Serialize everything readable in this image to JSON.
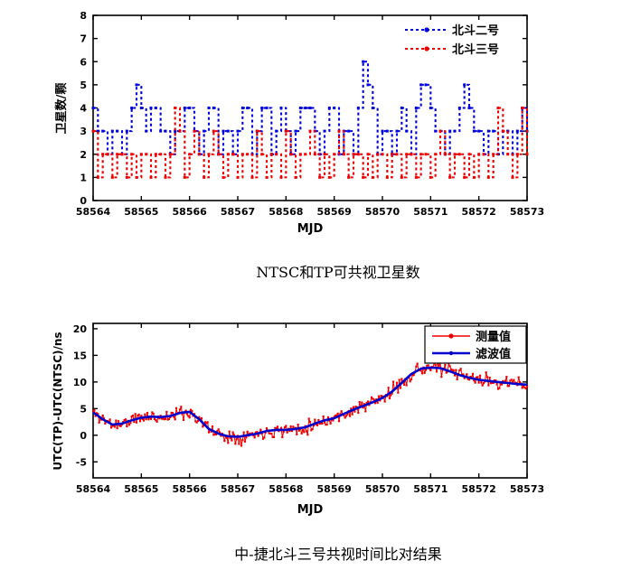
{
  "page": {
    "background": "#ffffff"
  },
  "captions": {
    "chart1": "NTSC和TP可共视卫星数",
    "chart2": "中-捷北斗三号共视时间比对结果"
  },
  "chart_data": [
    {
      "id": "visible-satellite-count",
      "type": "line",
      "style": "stairs-dashed",
      "xlabel": "MJD",
      "ylabel": "卫星数/颗",
      "xlim": [
        58564,
        58573
      ],
      "ylim": [
        0,
        8
      ],
      "xticks": [
        58564,
        58565,
        58566,
        58567,
        58568,
        58569,
        58570,
        58571,
        58572,
        58573
      ],
      "yticks": [
        0,
        1,
        2,
        3,
        4,
        5,
        6,
        7,
        8
      ],
      "grid": false,
      "legend_position": "top-right",
      "legend_box": false,
      "x_start": 58564,
      "x_step": 0.1,
      "series": [
        {
          "name": "北斗二号",
          "color": "#0000dd",
          "values": [
            4,
            3,
            3,
            2,
            3,
            3,
            2,
            3,
            4,
            5,
            4,
            3,
            4,
            4,
            3,
            3,
            2,
            3,
            3,
            4,
            4,
            3,
            2,
            3,
            4,
            4,
            2,
            3,
            3,
            2,
            3,
            4,
            4,
            2,
            3,
            4,
            4,
            2,
            3,
            4,
            3,
            2,
            3,
            4,
            4,
            4,
            3,
            2,
            3,
            4,
            4,
            2,
            3,
            3,
            2,
            4,
            6,
            5,
            4,
            2,
            3,
            3,
            2,
            3,
            4,
            3,
            2,
            4,
            5,
            5,
            4,
            3,
            3,
            2,
            3,
            3,
            4,
            5,
            4,
            3,
            3,
            2,
            3,
            3,
            2,
            3,
            3,
            2,
            3,
            4,
            3
          ]
        },
        {
          "name": "北斗三号",
          "color": "#ee0000",
          "values": [
            3,
            1,
            2,
            2,
            1,
            2,
            2,
            1,
            2,
            1,
            2,
            2,
            1,
            2,
            2,
            1,
            2,
            4,
            3,
            1,
            2,
            3,
            2,
            1,
            2,
            3,
            2,
            1,
            2,
            2,
            1,
            2,
            2,
            1,
            3,
            2,
            1,
            2,
            2,
            1,
            3,
            2,
            1,
            2,
            2,
            3,
            2,
            1,
            2,
            1,
            2,
            3,
            2,
            1,
            2,
            2,
            1,
            2,
            1,
            2,
            2,
            1,
            2,
            2,
            1,
            2,
            2,
            1,
            2,
            2,
            1,
            2,
            3,
            2,
            1,
            2,
            2,
            1,
            2,
            1,
            2,
            2,
            1,
            2,
            4,
            3,
            2,
            1,
            2,
            4,
            2
          ]
        }
      ]
    },
    {
      "id": "utc-time-comparison",
      "type": "line",
      "style": "noisy-plus-filtered",
      "xlabel": "MJD",
      "ylabel": "UTC(TP)-UTC(NTSC)/ns",
      "xlim": [
        58564,
        58573
      ],
      "ylim": [
        -8,
        21
      ],
      "xticks": [
        58564,
        58565,
        58566,
        58567,
        58568,
        58569,
        58570,
        58571,
        58572,
        58573
      ],
      "yticks": [
        -5,
        0,
        5,
        10,
        15,
        20
      ],
      "grid": false,
      "legend_position": "top-right",
      "legend_box": true,
      "series": [
        {
          "name": "测量值",
          "color": "#ee0000",
          "role": "measured",
          "derived_from": "滤波值",
          "noise_amp": 1.25,
          "noise_seed": 11,
          "x_step": 0.025
        },
        {
          "name": "滤波值",
          "color": "#0000cc",
          "role": "filtered",
          "x_start": 58564,
          "x_step": 0.2,
          "values": [
            4.3,
            3.0,
            2.0,
            2.2,
            2.8,
            3.3,
            3.5,
            3.4,
            3.6,
            4.2,
            4.4,
            3.0,
            1.2,
            0.3,
            -0.2,
            -0.3,
            0.0,
            0.3,
            0.8,
            1.0,
            1.0,
            1.2,
            1.5,
            2.2,
            2.8,
            3.2,
            4.0,
            4.8,
            5.5,
            6.2,
            7.0,
            8.2,
            9.8,
            11.5,
            12.5,
            12.7,
            12.6,
            12.0,
            11.3,
            10.8,
            10.4,
            10.2,
            10.0,
            9.8,
            9.6,
            9.5
          ]
        }
      ]
    }
  ]
}
